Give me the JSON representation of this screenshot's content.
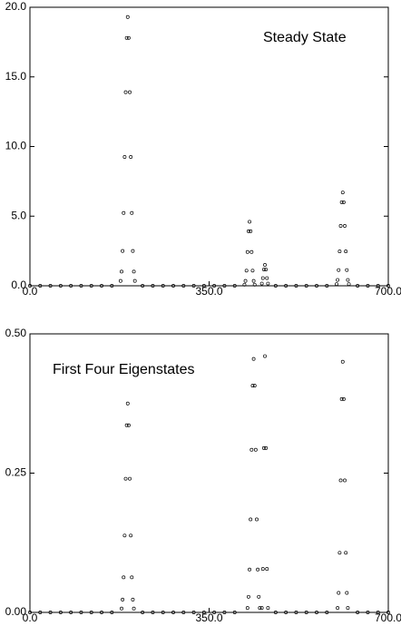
{
  "chart_data": [
    {
      "type": "scatter",
      "annotation": "Steady State",
      "x": [
        0,
        20,
        40,
        60,
        80,
        100,
        120,
        140,
        160,
        177,
        179,
        181,
        183,
        185,
        187,
        189,
        191,
        193,
        195,
        197,
        199,
        201,
        203,
        205,
        220,
        240,
        260,
        280,
        300,
        320,
        340,
        360,
        380,
        400,
        419,
        421,
        423,
        425,
        427,
        429,
        431,
        433,
        435,
        437,
        439,
        453,
        455,
        457,
        459,
        461,
        463,
        465,
        480,
        500,
        520,
        540,
        560,
        580,
        599,
        601,
        603,
        605,
        607,
        609,
        611,
        613,
        615,
        617,
        619,
        621,
        623,
        640,
        660,
        680,
        700
      ],
      "values": [
        0,
        0,
        0,
        0,
        0,
        0,
        0,
        0,
        0,
        0.35,
        1.02,
        2.5,
        5.23,
        9.25,
        13.9,
        17.8,
        19.3,
        17.8,
        13.9,
        9.25,
        5.23,
        2.5,
        1.02,
        0.35,
        0,
        0,
        0,
        0,
        0,
        0,
        0,
        0,
        0,
        0,
        0.08,
        0.35,
        1.09,
        2.43,
        3.92,
        4.6,
        3.92,
        2.43,
        1.09,
        0.35,
        0.08,
        0.16,
        0.55,
        1.17,
        1.5,
        1.17,
        0.55,
        0.16,
        0,
        0,
        0,
        0,
        0,
        0,
        0.12,
        0.42,
        1.13,
        2.47,
        4.3,
        6.0,
        6.7,
        6.0,
        4.3,
        2.47,
        1.13,
        0.42,
        0.12,
        0,
        0,
        0,
        0
      ],
      "color": "#000000",
      "xlim": [
        0,
        700
      ],
      "xticks": [
        {
          "value": 0,
          "label": "0.0"
        },
        {
          "value": 350,
          "label": "350.0"
        },
        {
          "value": 700,
          "label": "700.0"
        }
      ],
      "ylim": [
        0,
        20
      ],
      "yticks": [
        {
          "value": 0,
          "label": "0.0"
        },
        {
          "value": 5,
          "label": "5.0"
        },
        {
          "value": 10,
          "label": "10.0"
        },
        {
          "value": 15,
          "label": "15.0"
        },
        {
          "value": 20,
          "label": "20.0"
        }
      ]
    },
    {
      "type": "scatter",
      "annotation": "First Four Eigenstates",
      "x": [
        0,
        20,
        40,
        60,
        80,
        100,
        120,
        140,
        160,
        179,
        181,
        183,
        185,
        187,
        189,
        191,
        193,
        195,
        197,
        199,
        201,
        203,
        220,
        240,
        260,
        280,
        300,
        320,
        340,
        360,
        380,
        400,
        425,
        427,
        429,
        431,
        433,
        435,
        437,
        439,
        441,
        443,
        445,
        447,
        449,
        453,
        455,
        457,
        459,
        461,
        463,
        465,
        480,
        500,
        520,
        540,
        560,
        580,
        601,
        603,
        605,
        607,
        609,
        611,
        613,
        615,
        617,
        619,
        621,
        640,
        660,
        680,
        700
      ],
      "values": [
        0,
        0,
        0,
        0,
        0,
        0,
        0,
        0,
        0,
        0.007,
        0.023,
        0.063,
        0.138,
        0.24,
        0.336,
        0.375,
        0.336,
        0.24,
        0.138,
        0.063,
        0.023,
        0.007,
        0,
        0,
        0,
        0,
        0,
        0,
        0,
        0,
        0,
        0,
        0.008,
        0.028,
        0.077,
        0.167,
        0.292,
        0.407,
        0.455,
        0.407,
        0.292,
        0.167,
        0.077,
        0.028,
        0.008,
        0.008,
        0.078,
        0.295,
        0.46,
        0.295,
        0.078,
        0.008,
        0,
        0,
        0,
        0,
        0,
        0,
        0.008,
        0.035,
        0.107,
        0.237,
        0.383,
        0.45,
        0.383,
        0.237,
        0.107,
        0.035,
        0.008,
        0,
        0,
        0,
        0
      ],
      "color": "#000000",
      "xlim": [
        0,
        700
      ],
      "xticks": [
        {
          "value": 0,
          "label": "0.0"
        },
        {
          "value": 350,
          "label": "350.0"
        },
        {
          "value": 700,
          "label": "700.0"
        }
      ],
      "ylim": [
        0,
        0.5
      ],
      "yticks": [
        {
          "value": 0,
          "label": "0.00"
        },
        {
          "value": 0.25,
          "label": "0.25"
        },
        {
          "value": 0.5,
          "label": "0.50"
        }
      ]
    }
  ]
}
